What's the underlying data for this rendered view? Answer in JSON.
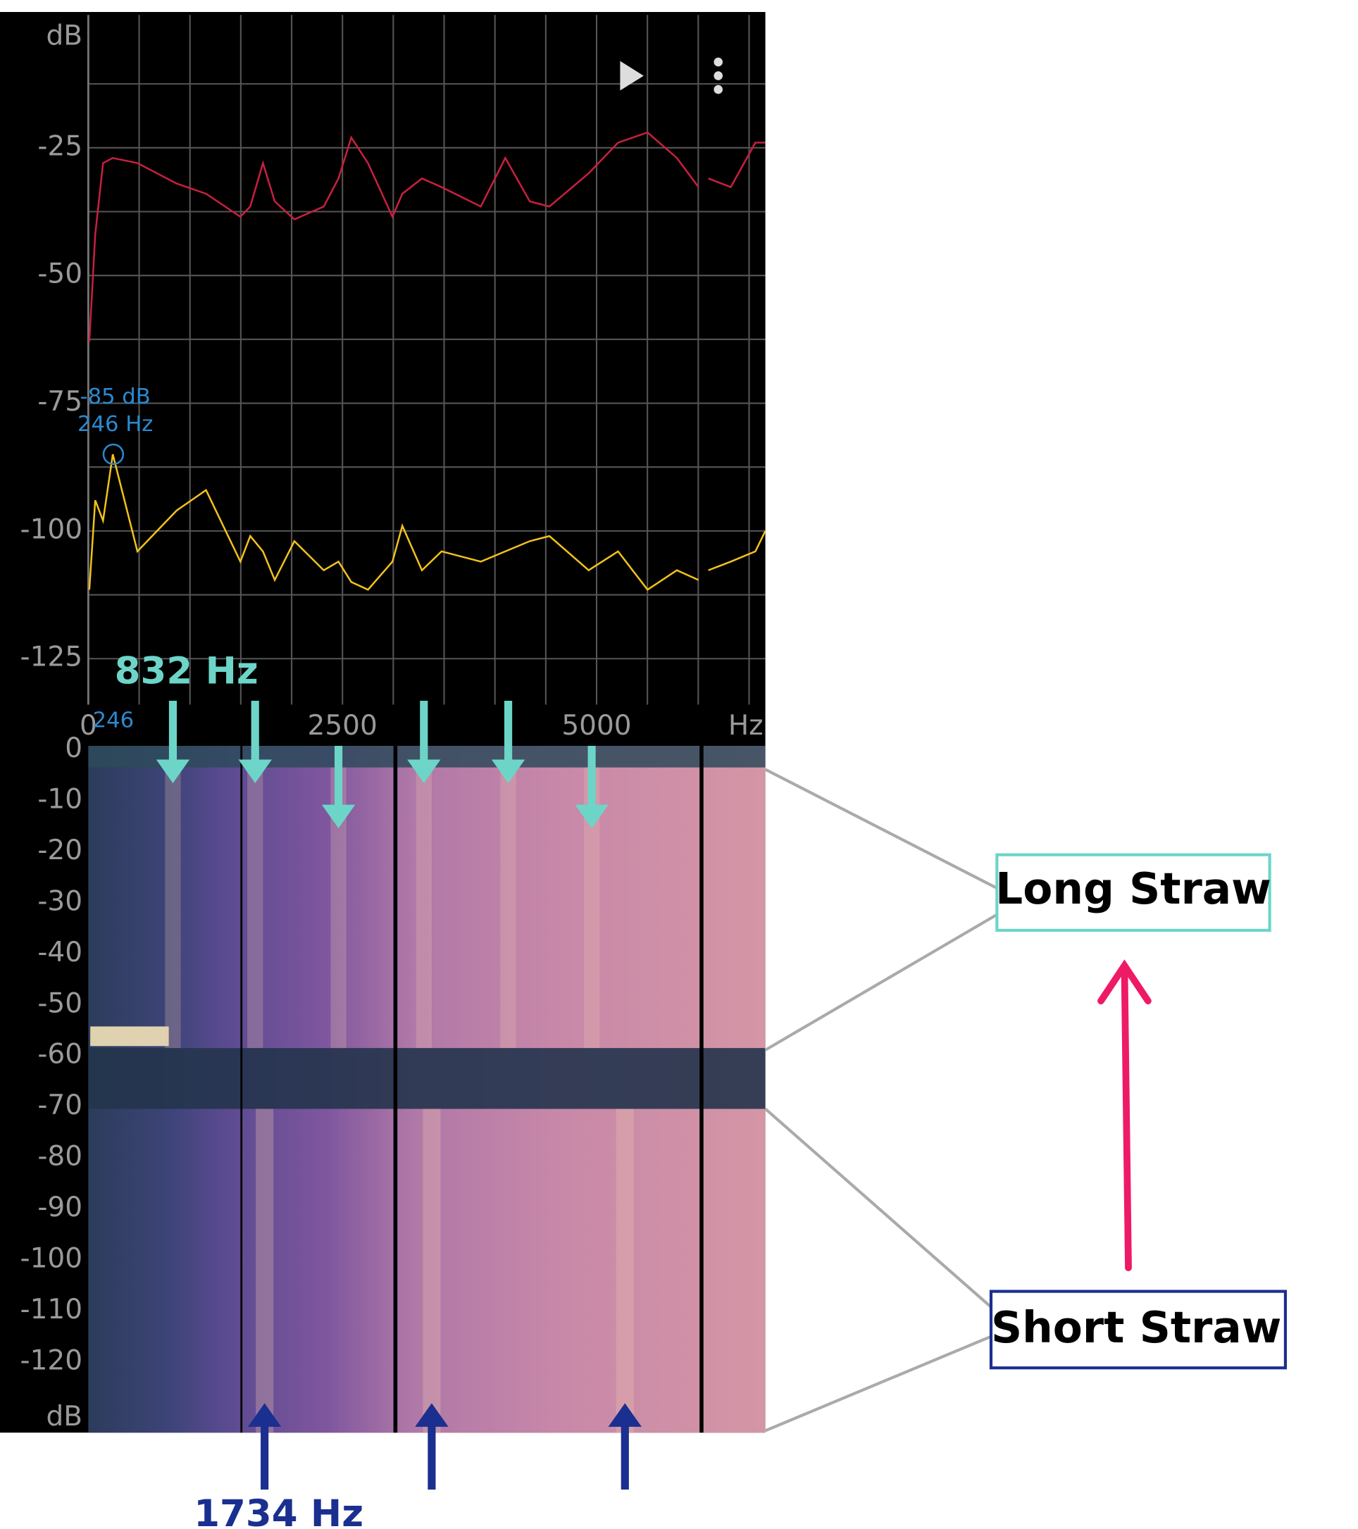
{
  "chart_data": [
    {
      "type": "line",
      "y_unit": "dB",
      "x_unit": "Hz",
      "x": [
        10,
        68,
        145,
        241,
        483,
        869,
        1158,
        1496,
        1593,
        1718,
        1834,
        2027,
        2316,
        2461,
        2587,
        2751,
        2992,
        3089,
        3282,
        3475,
        3861,
        4102,
        4343,
        4536,
        4922,
        5211,
        5501,
        5790,
        6002,
        6050,
        6099,
        6320,
        6562,
        6660
      ],
      "series": [
        {
          "color": "#c8203f",
          "values": [
            -63,
            -42,
            -28,
            -27,
            -28,
            -32,
            -34,
            -38.5,
            -36.5,
            -28,
            -35.5,
            -39,
            -36.5,
            -31,
            -23,
            -28,
            -38.5,
            -34,
            -31,
            -32.7,
            -36.5,
            -27,
            -35.5,
            -36.5,
            -30,
            -24,
            -22,
            -27,
            -32.7,
            null,
            -31,
            -32.7,
            -24,
            -24
          ]
        },
        {
          "color": "#f2c21b",
          "values": [
            -111.5,
            -94,
            -98,
            -85,
            -104,
            -96,
            -92,
            -106,
            -101,
            -104,
            -109.6,
            -102,
            -107.7,
            -106,
            -110,
            -111.5,
            -106,
            -99,
            -107.7,
            -104,
            -106,
            -104,
            -102,
            -101,
            -107.7,
            -104,
            -111.5,
            -107.7,
            -109.6,
            null,
            -107.7,
            -106,
            -104,
            -100
          ]
        }
      ],
      "xlim": [
        0,
        6660
      ],
      "ylim": [
        -134,
        1
      ],
      "xticks": [
        0,
        2500,
        5000
      ],
      "yticks": [
        -25,
        -50,
        -75,
        -100,
        -125
      ],
      "xgrid": [
        500,
        1000,
        1500,
        2000,
        2500,
        3000,
        3500,
        4000,
        4500,
        5000,
        5500,
        6000,
        6500
      ],
      "ygrid": [
        -12.5,
        -25,
        -37.5,
        -50,
        -62.5,
        -75,
        -87.5,
        -100,
        -112.5,
        -125
      ],
      "grid": true,
      "peak": {
        "x": 246,
        "y": -85,
        "y_label": "-85 dB",
        "x_label": "246 Hz",
        "axis_label": "246"
      }
    },
    {
      "type": "spectrogram",
      "xlim": [
        0,
        6660
      ],
      "level_ticks": [
        0,
        -10,
        -20,
        -30,
        -40,
        -50,
        -60,
        -70,
        -80,
        -90,
        -100,
        -110,
        -120
      ],
      "level_unit": "dB",
      "dividers": [
        1506,
        3021,
        6032
      ]
    }
  ],
  "annotations": {
    "long_straw": {
      "label": "Long Straw",
      "color": "#6dd5c8",
      "peaks": [
        832,
        1641,
        2461,
        3301,
        4131,
        4952
      ],
      "peak_label": "832 Hz"
    },
    "short_straw": {
      "label": "Short Straw",
      "color": "#1a2f8f",
      "peaks": [
        1734,
        3378,
        5279
      ],
      "peak_label": "1734 Hz"
    }
  }
}
